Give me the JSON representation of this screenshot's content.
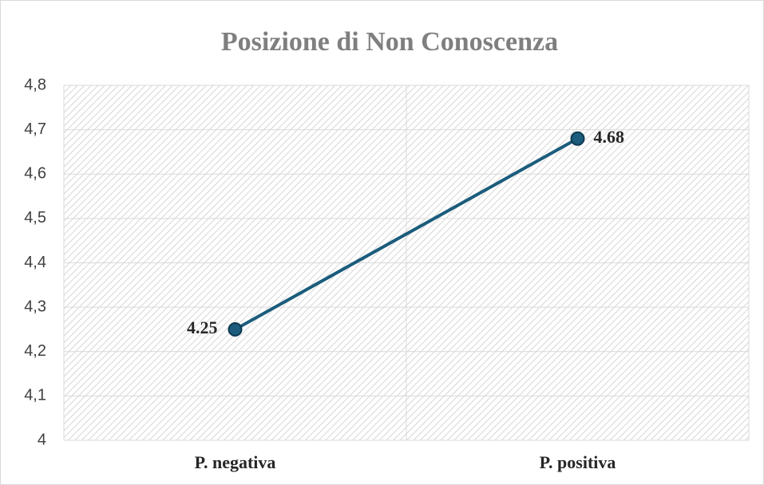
{
  "chart_data": {
    "type": "line",
    "title": "Posizione di Non Conoscenza",
    "categories": [
      "P. negativa",
      "P. positiva"
    ],
    "series": [
      {
        "name": "Posizione di Non Conoscenza",
        "color": "#1b5c7c",
        "values": [
          4.25,
          4.68
        ]
      }
    ],
    "ylim": [
      4,
      4.8
    ],
    "yticks": [
      4,
      {
        "value": 4.1,
        "label": "4,1"
      },
      {
        "value": 4.2,
        "label": "4,2"
      },
      {
        "value": 4.3,
        "label": "4,3"
      },
      {
        "value": 4.4,
        "label": "4,4"
      },
      {
        "value": 4.5,
        "label": "4,5"
      },
      {
        "value": 4.6,
        "label": "4,6"
      },
      {
        "value": 4.7,
        "label": "4,7"
      },
      {
        "value": 4.8,
        "label": "4,8"
      }
    ],
    "grid": true
  }
}
